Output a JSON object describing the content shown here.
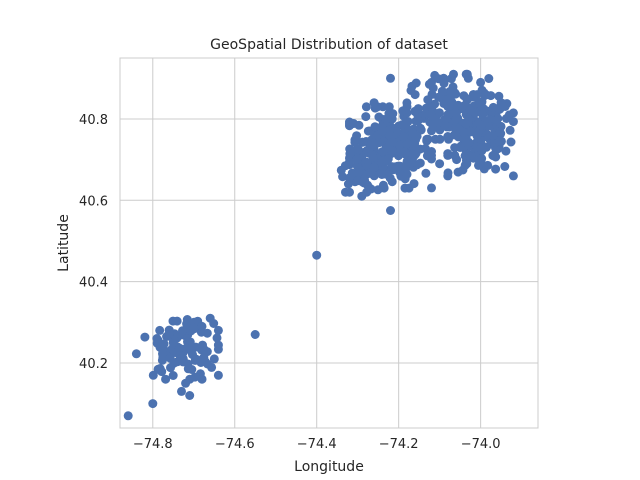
{
  "chart_data": {
    "type": "scatter",
    "title": "GeoSpatial Distribution of dataset",
    "xlabel": "Longitude",
    "ylabel": "Latitude",
    "xlim": [
      -74.88,
      -73.86
    ],
    "ylim": [
      40.04,
      40.95
    ],
    "x_ticks": [
      -74.8,
      -74.6,
      -74.4,
      -74.2,
      -74.0
    ],
    "x_tick_labels": [
      "−74.8",
      "−74.6",
      "−74.4",
      "−74.2",
      "−74.0"
    ],
    "y_ticks": [
      40.2,
      40.4,
      40.6,
      40.8
    ],
    "y_tick_labels": [
      "40.2",
      "40.4",
      "40.6",
      "40.8"
    ],
    "grid": true,
    "marker_color": "#4c72b0",
    "clusters": [
      {
        "center": [
          -74.22,
          40.73
        ],
        "spread": [
          0.05,
          0.05
        ],
        "count": 220
      },
      {
        "center": [
          -74.08,
          40.83
        ],
        "spread": [
          0.05,
          0.04
        ],
        "count": 90
      },
      {
        "center": [
          -74.0,
          40.76
        ],
        "spread": [
          0.04,
          0.05
        ],
        "count": 170
      },
      {
        "center": [
          -74.28,
          40.68
        ],
        "spread": [
          0.03,
          0.03
        ],
        "count": 40
      },
      {
        "center": [
          -74.74,
          40.22
        ],
        "spread": [
          0.05,
          0.03
        ],
        "count": 70
      },
      {
        "center": [
          -74.7,
          40.28
        ],
        "spread": [
          0.03,
          0.02
        ],
        "count": 20
      }
    ],
    "points": [
      [
        -74.86,
        40.07
      ],
      [
        -74.8,
        40.1
      ],
      [
        -74.71,
        40.12
      ],
      [
        -74.73,
        40.13
      ],
      [
        -74.72,
        40.15
      ],
      [
        -74.68,
        40.16
      ],
      [
        -74.55,
        40.27
      ],
      [
        -74.66,
        40.31
      ],
      [
        -74.68,
        40.29
      ],
      [
        -74.79,
        40.26
      ],
      [
        -74.75,
        40.25
      ],
      [
        -74.65,
        40.21
      ],
      [
        -74.4,
        40.465
      ],
      [
        -74.22,
        40.575
      ],
      [
        -74.29,
        40.61
      ],
      [
        -74.32,
        40.655
      ],
      [
        -74.33,
        40.685
      ],
      [
        -74.23,
        40.8
      ],
      [
        -74.22,
        40.9
      ],
      [
        -74.12,
        40.89
      ],
      [
        -74.09,
        40.9
      ],
      [
        -74.03,
        40.9
      ],
      [
        -74.0,
        40.89
      ],
      [
        -74.16,
        40.86
      ],
      [
        -73.93,
        40.81
      ],
      [
        -73.92,
        40.815
      ],
      [
        -73.95,
        40.84
      ],
      [
        -74.1,
        40.69
      ],
      [
        -74.12,
        40.72
      ],
      [
        -74.24,
        40.77
      ],
      [
        -74.19,
        40.82
      ],
      [
        -74.05,
        40.73
      ],
      [
        -73.97,
        40.71
      ],
      [
        -74.26,
        40.84
      ],
      [
        -74.11,
        40.8
      ],
      [
        -74.17,
        40.87
      ]
    ]
  }
}
